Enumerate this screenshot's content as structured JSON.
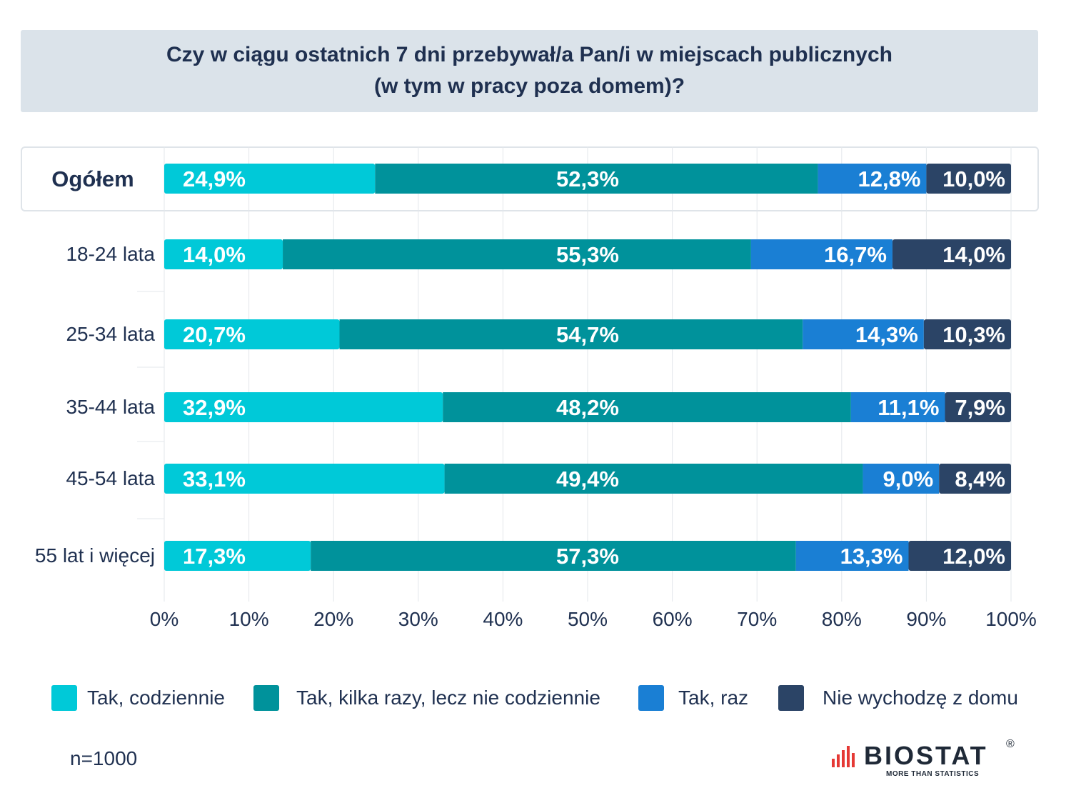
{
  "title": {
    "line1": "Czy w ciągu ostatnich 7 dni przebywał/a Pan/i w miejscach publicznych",
    "line2": "(w tym w pracy poza domem)?"
  },
  "colors": {
    "daily": "#00c9d8",
    "several": "#00929b",
    "once": "#1a7fd4",
    "stay_home": "#2b4466"
  },
  "chart_data": {
    "type": "bar",
    "orientation": "horizontal",
    "stacked": true,
    "categories": [
      "Ogółem",
      "18-24 lata",
      "25-34 lata",
      "35-44 lata",
      "45-54 lata",
      "55 lat i więcej"
    ],
    "series": [
      {
        "name": "Tak, codziennie",
        "values": [
          24.9,
          14.0,
          20.7,
          32.9,
          33.1,
          17.3
        ],
        "labels": [
          "24,9%",
          "14,0%",
          "20,7%",
          "32,9%",
          "33,1%",
          "17,3%"
        ]
      },
      {
        "name": "Tak, kilka razy, lecz nie codziennie",
        "values": [
          52.3,
          55.3,
          54.7,
          48.2,
          49.4,
          57.3
        ],
        "labels": [
          "52,3%",
          "55,3%",
          "54,7%",
          "48,2%",
          "49,4%",
          "57,3%"
        ]
      },
      {
        "name": "Tak, raz",
        "values": [
          12.8,
          16.7,
          14.3,
          11.1,
          9.0,
          13.3
        ],
        "labels": [
          "12,8%",
          "16,7%",
          "14,3%",
          "11,1%",
          "9,0%",
          "13,3%"
        ]
      },
      {
        "name": "Nie wychodzę z domu",
        "values": [
          10.0,
          14.0,
          10.3,
          7.9,
          8.4,
          12.0
        ],
        "labels": [
          "10,0%",
          "14,0%",
          "10,3%",
          "7,9%",
          "8,4%",
          "12,0%"
        ]
      }
    ],
    "xlim": [
      0,
      100
    ],
    "xticks": [
      "0%",
      "10%",
      "20%",
      "30%",
      "40%",
      "50%",
      "60%",
      "70%",
      "80%",
      "90%",
      "100%"
    ],
    "grid": true,
    "legend_position": "bottom"
  },
  "footer": {
    "sample": "n=1000",
    "logo_word": "BIOSTAT",
    "logo_reg": "®",
    "logo_tagline": "MORE THAN STATISTICS"
  }
}
